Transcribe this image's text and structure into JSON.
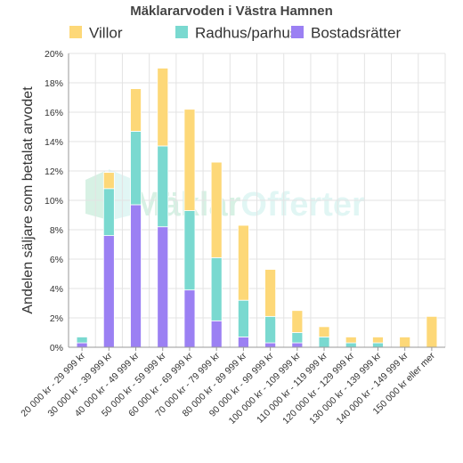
{
  "chart_data": {
    "type": "bar",
    "stacked": true,
    "title": "Mäklararvoden i Västra Hamnen",
    "xlabel": "",
    "ylabel": "Andelen säljare som betalat arvodet",
    "ylim": [
      0,
      20
    ],
    "y_tick_step": 2,
    "y_tick_suffix": "%",
    "grid": true,
    "legend_position": "top",
    "watermark": {
      "prefix": "Mäklar",
      "suffix": "Offerter"
    },
    "categories": [
      "20 000 kr - 29 999 kr",
      "30 000 kr - 39 999 kr",
      "40 000 kr - 49 999 kr",
      "50 000 kr - 59 999 kr",
      "60 000 kr - 69 999 kr",
      "70 000 kr - 79 999 kr",
      "80 000 kr - 89 999 kr",
      "90 000 kr - 99 999 kr",
      "100 000 kr - 109 999 kr",
      "110 000 kr - 119 999 kr",
      "120 000 kr - 129 999 kr",
      "130 000 kr - 139 999 kr",
      "140 000 kr - 149 999 kr",
      "150 000 kr eller mer"
    ],
    "series": [
      {
        "name": "Bostadsrätter",
        "color": "#9b80f3",
        "values": [
          0.3,
          7.6,
          9.7,
          8.2,
          3.9,
          1.8,
          0.7,
          0.3,
          0.3,
          0,
          0,
          0,
          0,
          0
        ]
      },
      {
        "name": "Radhus/parhus",
        "color": "#7ad9d0",
        "values": [
          0.4,
          3.2,
          5.0,
          5.5,
          5.4,
          4.3,
          2.5,
          1.8,
          0.7,
          0.7,
          0.3,
          0.3,
          0,
          0
        ]
      },
      {
        "name": "Villor",
        "color": "#fdd878",
        "values": [
          0,
          1.1,
          2.9,
          5.3,
          6.9,
          6.5,
          5.1,
          3.2,
          1.5,
          0.7,
          0.4,
          0.4,
          0.7,
          2.1
        ]
      }
    ],
    "legend_order": [
      "Villor",
      "Radhus/parhus",
      "Bostadsrätter"
    ]
  }
}
